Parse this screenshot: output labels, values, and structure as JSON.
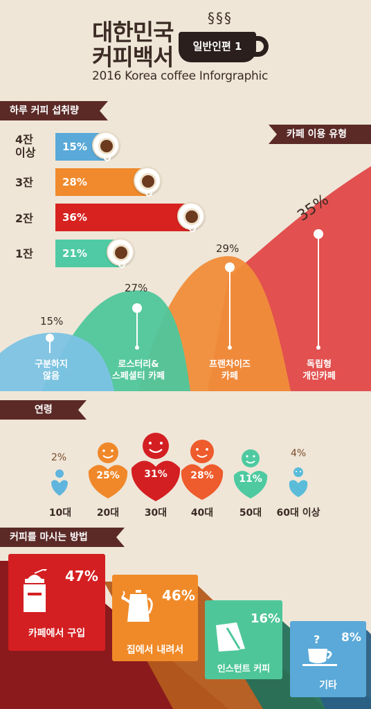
{
  "header": {
    "title_line1": "대한민국",
    "title_line2": "커피백서",
    "badge": "일반인편 1",
    "subtitle": "2016 Korea coffee Inforgraphic"
  },
  "daily_intake": {
    "title": "하루 커피 섭취량",
    "rows": [
      {
        "label": "4잔 이상",
        "value": "15%",
        "percent": 15,
        "color": "#5aa9d8"
      },
      {
        "label": "3잔",
        "value": "28%",
        "percent": 28,
        "color": "#f08a2c"
      },
      {
        "label": "2잔",
        "value": "36%",
        "percent": 36,
        "color": "#d7221f"
      },
      {
        "label": "1잔",
        "value": "21%",
        "percent": 21,
        "color": "#4fcaa4"
      }
    ]
  },
  "cafe_type": {
    "title": "카페 이용 유형",
    "items": [
      {
        "value": "15%",
        "percent": 15,
        "label_line1": "구분하지",
        "label_line2": "않음",
        "color": "#7cc3e4"
      },
      {
        "value": "27%",
        "percent": 27,
        "label_line1": "로스터리&",
        "label_line2": "스페셜티 카페",
        "color": "#4fc69c"
      },
      {
        "value": "29%",
        "percent": 29,
        "label_line1": "프랜차이즈",
        "label_line2": "카페",
        "color": "#f08d3a"
      },
      {
        "value": "35%",
        "percent": 35,
        "label_line1": "독립형",
        "label_line2": "개인카페",
        "color": "#e04848"
      }
    ]
  },
  "age": {
    "title": "연령",
    "items": [
      {
        "value": "2%",
        "percent": 2,
        "label": "10대",
        "color": "#5fb5dd"
      },
      {
        "value": "25%",
        "percent": 25,
        "label": "20대",
        "color": "#f0882a"
      },
      {
        "value": "31%",
        "percent": 31,
        "label": "30대",
        "color": "#d41f22"
      },
      {
        "value": "28%",
        "percent": 28,
        "label": "40대",
        "color": "#ee5b2c"
      },
      {
        "value": "11%",
        "percent": 11,
        "label": "50대",
        "color": "#4fcaa0"
      },
      {
        "value": "4%",
        "percent": 4,
        "label": "60대 이상",
        "color": "#5bbcd9"
      }
    ]
  },
  "method": {
    "title": "커피를 마시는 방법",
    "items": [
      {
        "value": "47%",
        "percent": 47,
        "label": "카페에서 구입",
        "color": "#d41f22",
        "icon": "coffee-grinder-icon"
      },
      {
        "value": "46%",
        "percent": 46,
        "label": "집에서 내려서",
        "color": "#f08a28",
        "icon": "kettle-icon"
      },
      {
        "value": "16%",
        "percent": 16,
        "label": "인스턴트 커피",
        "color": "#4fc69a",
        "icon": "instant-coffee-icon"
      },
      {
        "value": "8%",
        "percent": 8,
        "label": "기타",
        "color": "#5aa9d8",
        "icon": "question-cup-icon"
      }
    ]
  }
}
